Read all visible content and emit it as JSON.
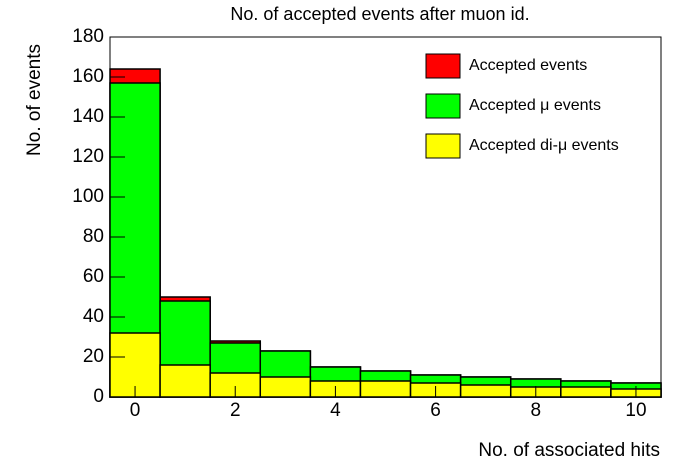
{
  "chart_data": {
    "type": "histogram",
    "title": "No. of accepted events after muon id.",
    "x_label": "No. of associated hits",
    "y_label": "No. of events",
    "bins": [
      -0.5,
      0.5,
      1.5,
      2.5,
      3.5,
      4.5,
      5.5,
      6.5,
      7.5,
      8.5,
      9.5,
      10.5
    ],
    "series": [
      {
        "name": "Accepted events",
        "color": "#ff0000",
        "values": [
          164,
          50,
          28,
          23,
          15,
          13,
          11,
          10,
          9,
          8,
          7
        ]
      },
      {
        "name": "Accepted μ events",
        "color": "#00ff00",
        "values": [
          157,
          48,
          27,
          23,
          15,
          13,
          11,
          10,
          9,
          8,
          7
        ]
      },
      {
        "name": "Accepted di-μ events",
        "color": "#ffff00",
        "values": [
          32,
          16,
          12,
          10,
          8,
          8,
          7,
          6,
          5,
          5,
          4
        ]
      }
    ],
    "xlim": [
      -0.5,
      10.5
    ],
    "xticks": [
      0,
      2,
      4,
      6,
      8,
      10
    ],
    "ylim": [
      0,
      180
    ],
    "yticks": [
      0,
      20,
      40,
      60,
      80,
      100,
      120,
      140,
      160,
      180
    ]
  }
}
